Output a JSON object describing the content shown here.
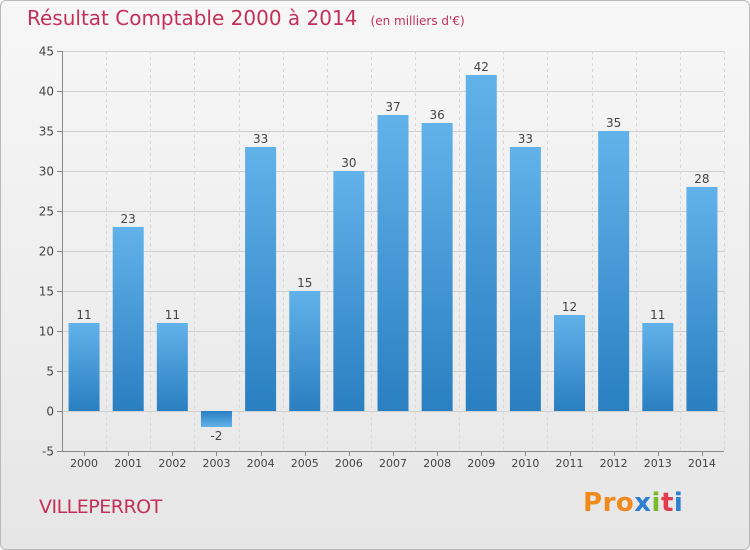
{
  "header": {
    "title": "Résultat Comptable 2000 à 2014",
    "subtitle": "(en milliers d'€)"
  },
  "commune": "VILLEPERROT",
  "logo": {
    "text": "Proxiti",
    "letters": [
      "P",
      "r",
      "o",
      "x",
      "i",
      "t",
      "i"
    ],
    "colors": [
      "#f08a1c",
      "#f08a1c",
      "#f08a1c",
      "#2f7fd0",
      "#7ab929",
      "#e23c4e",
      "#2f7fd0"
    ]
  },
  "colors": {
    "title": "#c4305a",
    "bar_light": "#62b2ea",
    "bar_dark": "#2a7fc1"
  },
  "chart_data": {
    "type": "bar",
    "title": "Résultat Comptable 2000 à 2014",
    "subtitle": "(en milliers d'€)",
    "xlabel": "",
    "ylabel": "",
    "categories": [
      "2000",
      "2001",
      "2002",
      "2003",
      "2004",
      "2005",
      "2006",
      "2007",
      "2008",
      "2009",
      "2010",
      "2011",
      "2012",
      "2013",
      "2014"
    ],
    "values": [
      11,
      23,
      11,
      -2,
      33,
      15,
      30,
      37,
      36,
      42,
      33,
      12,
      35,
      11,
      28
    ],
    "ylim": [
      -5,
      45
    ],
    "yticks": [
      -5,
      0,
      5,
      10,
      15,
      20,
      25,
      30,
      35,
      40,
      45
    ],
    "grid": true,
    "data_labels": true
  }
}
